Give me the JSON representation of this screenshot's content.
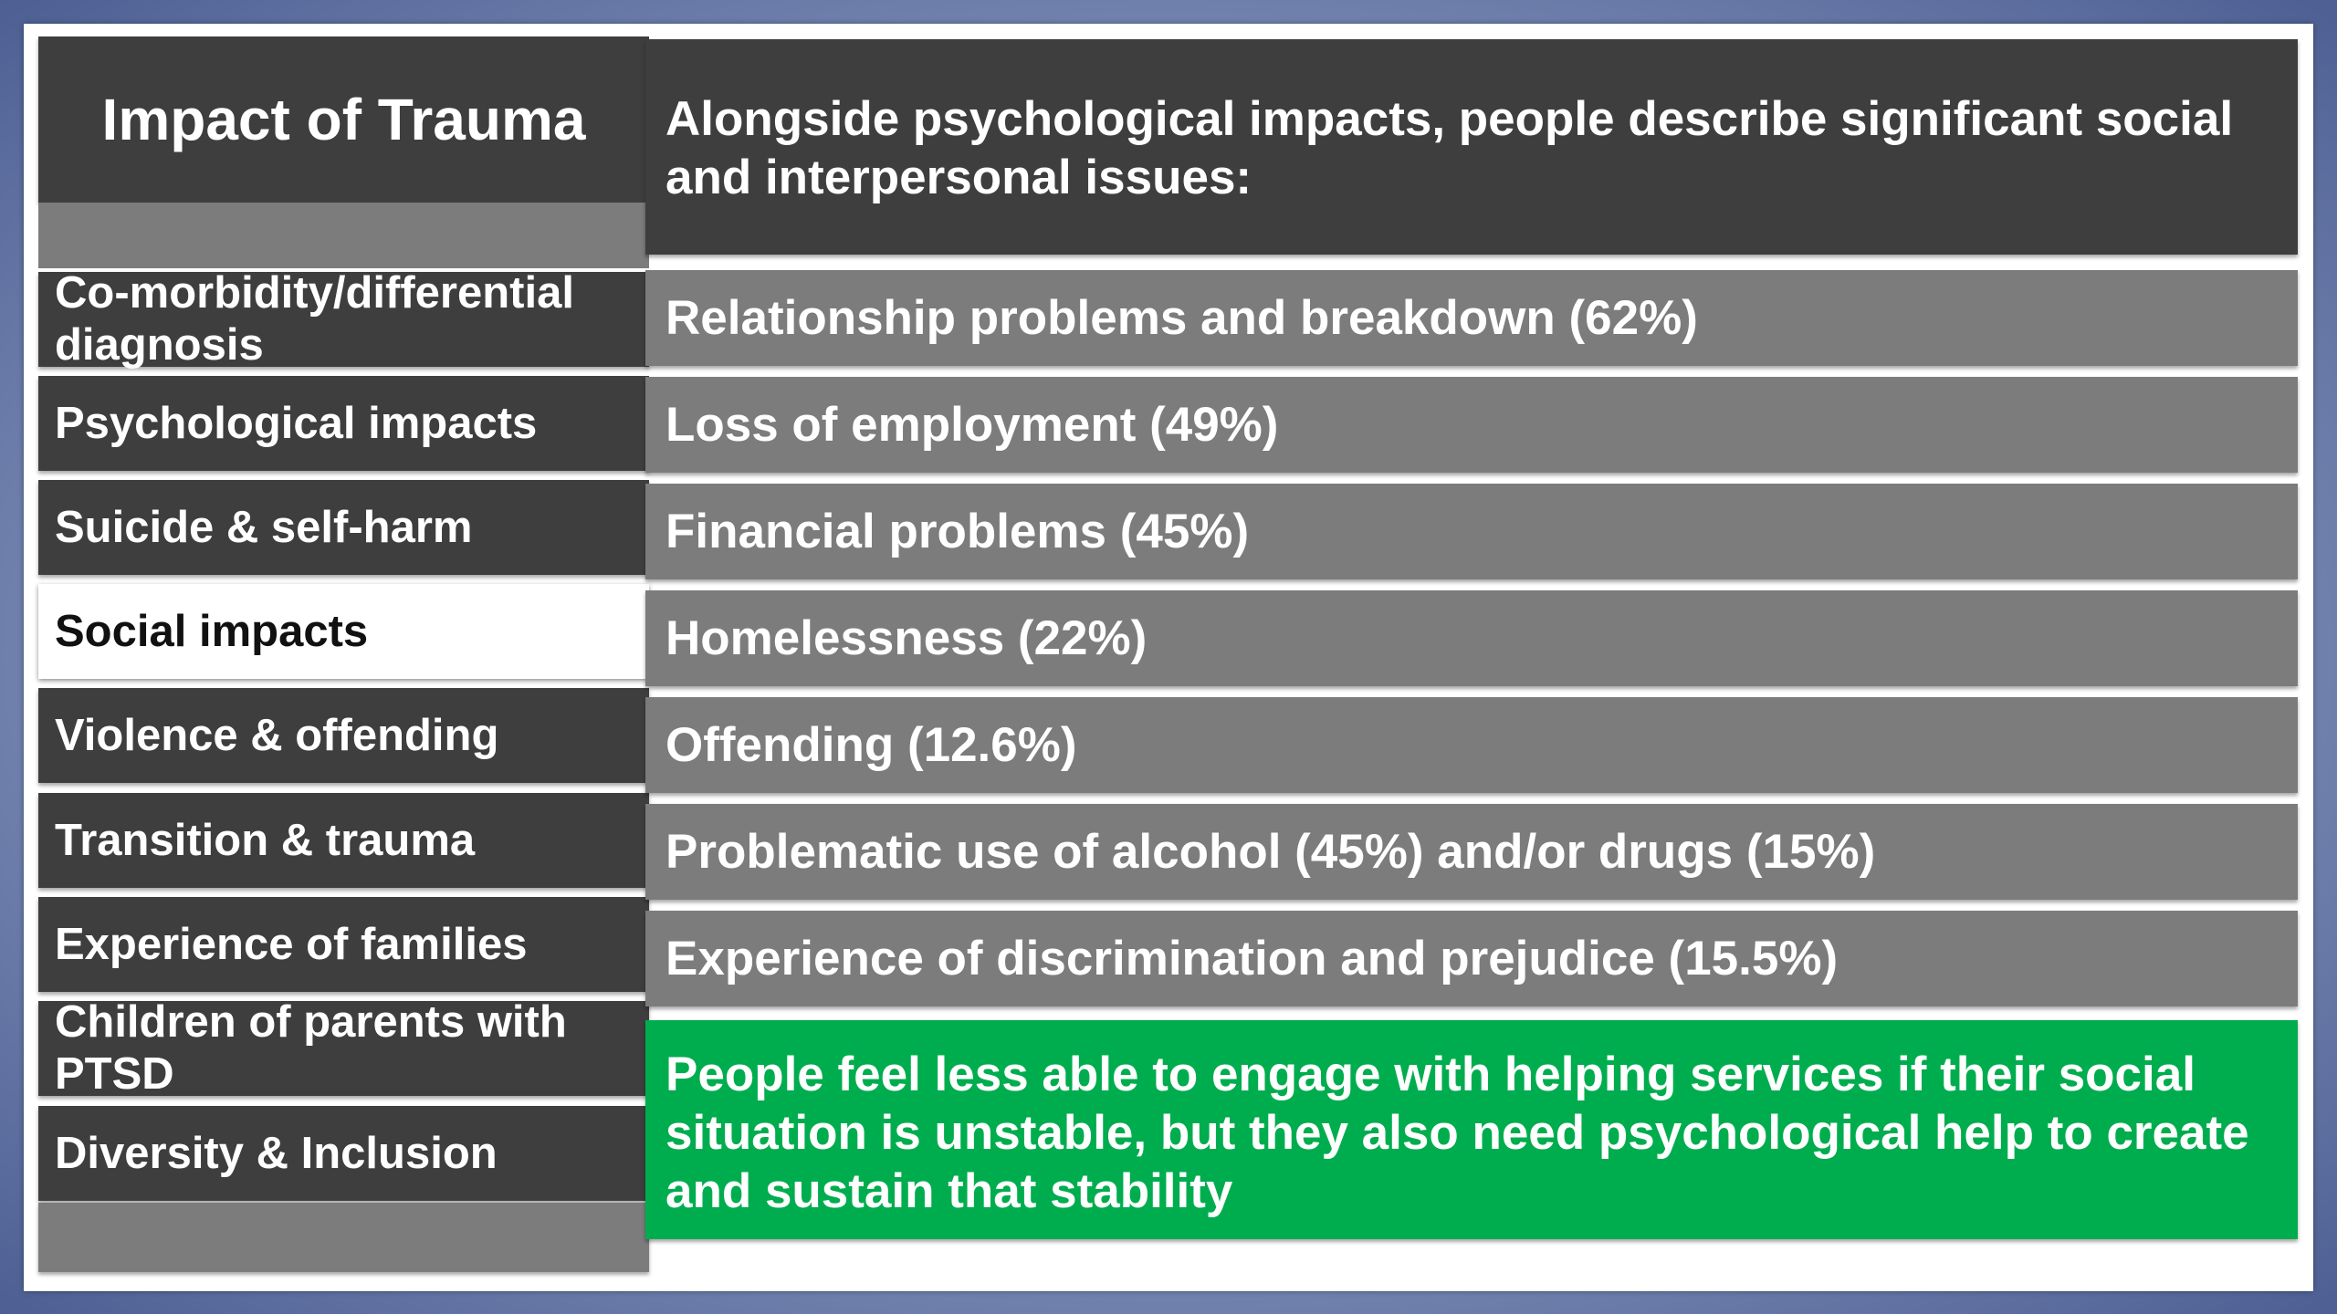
{
  "nav": {
    "title": "Impact of Trauma",
    "items": [
      {
        "label": "Co-morbidity/differential diagnosis",
        "active": false
      },
      {
        "label": "Psychological impacts",
        "active": false
      },
      {
        "label": "Suicide & self-harm",
        "active": false
      },
      {
        "label": "Social impacts",
        "active": true
      },
      {
        "label": "Violence & offending",
        "active": false
      },
      {
        "label": "Transition & trauma",
        "active": false
      },
      {
        "label": "Experience of families",
        "active": false
      },
      {
        "label": "Children of parents with PTSD",
        "active": false
      },
      {
        "label": "Diversity & Inclusion",
        "active": false
      }
    ]
  },
  "content": {
    "heading": "Alongside psychological impacts, people describe significant social and interpersonal issues:",
    "items": [
      "Relationship problems and breakdown (62%)",
      "Loss of employment (49%)",
      "Financial problems (45%)",
      "Homelessness (22%)",
      "Offending (12.6%)",
      "Problematic use of alcohol (45%) and/or drugs (15%)",
      "Experience of discrimination and prejudice (15.5%)"
    ],
    "conclusion": "People feel less able to engage with helping services if their social situation is unstable, but they also need psychological help to create and sustain that stability"
  },
  "colors": {
    "dark_tile": "#3e3e3e",
    "grey_tile": "#7c7c7c",
    "active_tile": "#ffffff",
    "conclusion": "#00ad4e",
    "background": "#6f80ad"
  }
}
